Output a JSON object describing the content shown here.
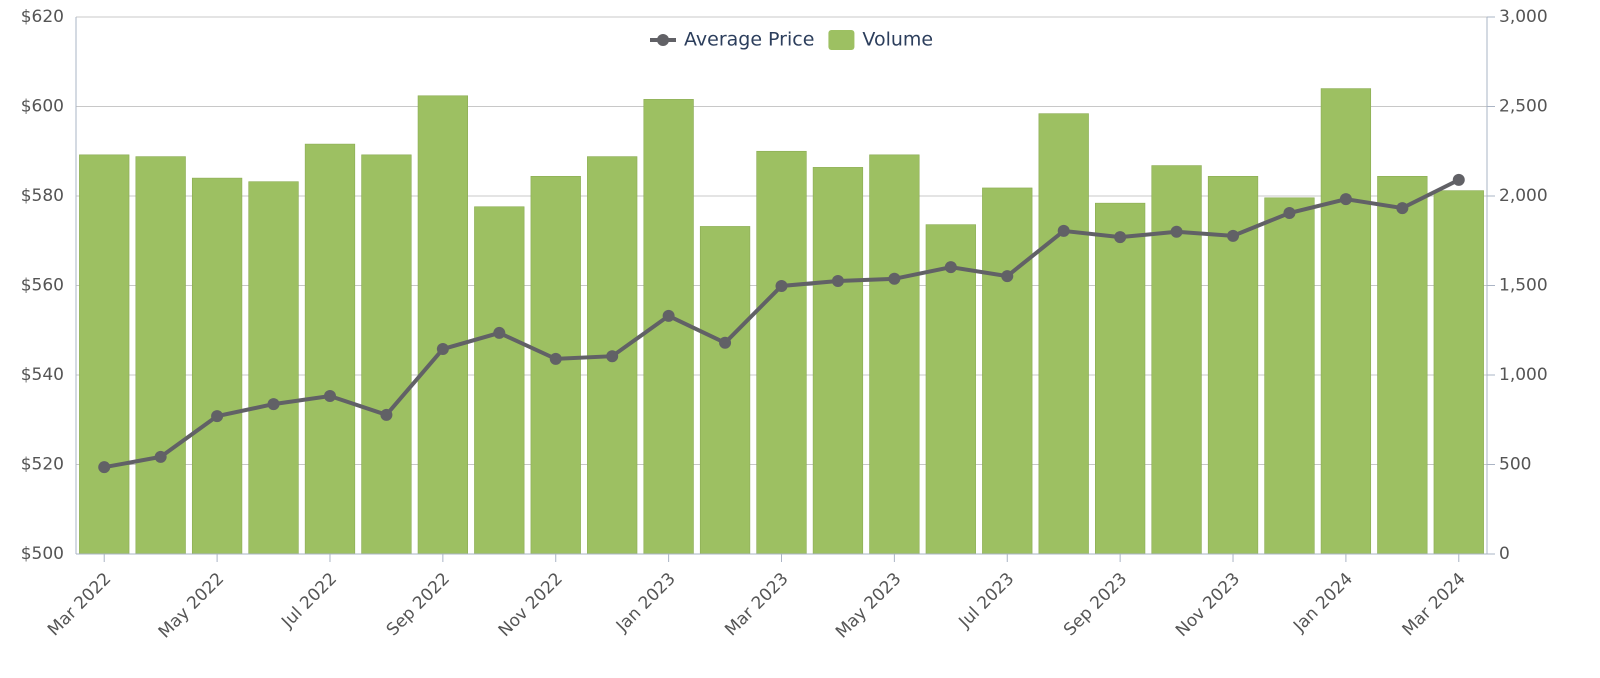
{
  "chart_data": {
    "type": "bar-line",
    "categories": [
      "Mar 2022",
      null,
      "May 2022",
      null,
      "Jul 2022",
      null,
      "Sep 2022",
      null,
      "Nov 2022",
      null,
      "Jan 2023",
      null,
      "Mar 2023",
      null,
      "May 2023",
      null,
      "Jul 2023",
      null,
      "Sep 2023",
      null,
      "Nov 2023",
      null,
      "Jan 2024",
      null,
      "Mar 2024"
    ],
    "series": [
      {
        "name": "Average Price",
        "type": "line",
        "color": "#616166",
        "axis": "y",
        "values": [
          519.4,
          521.7,
          530.8,
          533.5,
          535.3,
          531.1,
          545.8,
          549.4,
          543.6,
          544.2,
          553.2,
          547.2,
          559.9,
          561.0,
          561.5,
          564.1,
          562.1,
          572.2,
          570.8,
          572.0,
          571.1,
          576.2,
          579.3,
          577.3,
          583.6
        ]
      },
      {
        "name": "Volume",
        "type": "bar",
        "color": "#9dc062",
        "axis": "y2",
        "values": [
          2230,
          2220,
          2100,
          2080,
          2290,
          2230,
          2560,
          1940,
          2110,
          2220,
          2540,
          1830,
          2250,
          2160,
          2230,
          1840,
          2045,
          2460,
          1960,
          2170,
          2110,
          1990,
          2600,
          2110,
          2030
        ]
      }
    ],
    "ylim": [
      500,
      620
    ],
    "yticks": [
      {
        "value": 500,
        "label": "$500"
      },
      {
        "value": 520,
        "label": "$520"
      },
      {
        "value": 540,
        "label": "$540"
      },
      {
        "value": 560,
        "label": "$560"
      },
      {
        "value": 580,
        "label": "$580"
      },
      {
        "value": 600,
        "label": "$600"
      },
      {
        "value": 620,
        "label": "$620"
      }
    ],
    "y2lim": [
      0,
      3000
    ],
    "y2ticks": [
      0,
      500,
      {
        "value": 1000,
        "label": "1,000"
      },
      {
        "value": 1500,
        "label": "1,500"
      },
      {
        "value": 2000,
        "label": "2,000"
      },
      {
        "value": 2500,
        "label": "2,500"
      },
      {
        "value": 3000,
        "label": "3,000"
      }
    ],
    "grid": true,
    "legend": "top"
  }
}
